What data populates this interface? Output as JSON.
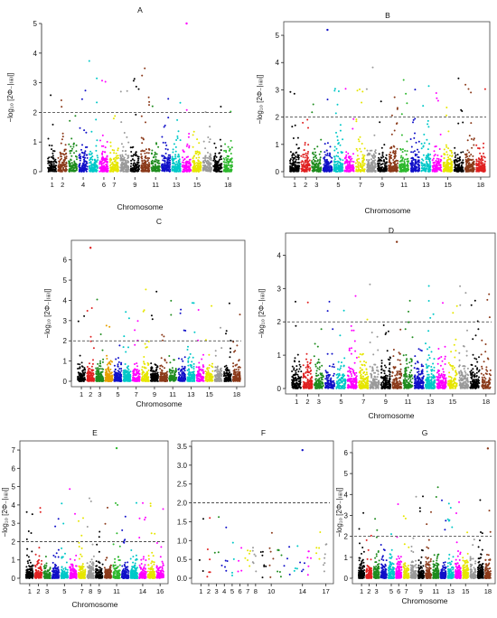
{
  "figure": {
    "panels": [
      {
        "id": "A",
        "title": "A",
        "xlabel": "Chromosome",
        "ylabel": "−log₁₀ [2Φ₋|₍ᵢᵢᵢ₎|]",
        "ylim": [
          0,
          5
        ],
        "yticks": [
          0,
          1,
          2,
          3,
          4,
          5
        ],
        "chromosomes": 18,
        "xtick_labels": [
          "1",
          "2",
          "4",
          "6",
          "7",
          "9",
          "11",
          "13",
          "15",
          "18"
        ],
        "xtick_chroms": [
          1,
          2,
          4,
          6,
          7,
          9,
          11,
          13,
          15,
          18
        ],
        "threshold": 2,
        "peak": 5.0,
        "palette": [
          "#000000",
          "#8b3a1a",
          "#1f8c1f",
          "#1010c8",
          "#00c8c8",
          "#ff00ff",
          "#e6e600",
          "#9a9a9a",
          "#000000",
          "#8b3a1a",
          "#1f8c1f",
          "#1010c8",
          "#00c8c8",
          "#ff00ff",
          "#e6e600",
          "#9a9a9a",
          "#000000",
          "#2db82d"
        ]
      },
      {
        "id": "B",
        "title": "B",
        "xlabel": "Chromosome",
        "ylabel": "−log₁₀ [2Φ₋|₍ᵢᵢᵢ₎|]",
        "ylim": [
          0,
          5.3
        ],
        "yticks": [
          0,
          1,
          2,
          3,
          4,
          5
        ],
        "chromosomes": 18,
        "xtick_labels": [
          "1",
          "2",
          "3",
          "5",
          "7",
          "9",
          "11",
          "13",
          "15",
          "18"
        ],
        "xtick_chroms": [
          1,
          2,
          3,
          5,
          7,
          9,
          11,
          13,
          15,
          18
        ],
        "threshold": 2,
        "peak": 5.2,
        "palette": [
          "#000000",
          "#e02020",
          "#1f8c1f",
          "#1010c8",
          "#00c8c8",
          "#ff00ff",
          "#e6e600",
          "#9a9a9a",
          "#000000",
          "#8b3a1a",
          "#2db82d",
          "#1010c8",
          "#00c8c8",
          "#ff00ff",
          "#e6e600",
          "#000000",
          "#8b3a1a",
          "#e02020"
        ]
      },
      {
        "id": "C",
        "title": "C",
        "xlabel": "Chromosome",
        "ylabel": "−log₁₀ [2Φ₋|₍ᵢᵢᵢ₎|]",
        "ylim": [
          0,
          6.7
        ],
        "yticks": [
          0,
          1,
          2,
          3,
          4,
          5,
          6
        ],
        "chromosomes": 18,
        "xtick_labels": [
          "1",
          "2",
          "3",
          "5",
          "7",
          "9",
          "11",
          "13",
          "15",
          "18"
        ],
        "xtick_chroms": [
          1,
          2,
          3,
          5,
          7,
          9,
          11,
          13,
          15,
          18
        ],
        "threshold": 2,
        "peak": 6.6,
        "palette": [
          "#000000",
          "#e02020",
          "#1f8c1f",
          "#e6a000",
          "#1010c8",
          "#00c8c8",
          "#ff00ff",
          "#e6e600",
          "#000000",
          "#8b3a1a",
          "#1f8c1f",
          "#1010c8",
          "#00c8c8",
          "#ff00ff",
          "#e6e600",
          "#9a9a9a",
          "#000000",
          "#8b3a1a"
        ]
      },
      {
        "id": "D",
        "title": "D",
        "xlabel": "Chromosome",
        "ylabel": "−log₁₀ [2Φ₋|₍ᵢᵢᵢ₎|]",
        "ylim": [
          0,
          4.5
        ],
        "yticks": [
          0,
          1,
          2,
          3,
          4
        ],
        "chromosomes": 18,
        "xtick_labels": [
          "1",
          "2",
          "3",
          "5",
          "7",
          "9",
          "11",
          "13",
          "15",
          "18"
        ],
        "xtick_chroms": [
          1,
          2,
          3,
          5,
          7,
          9,
          11,
          13,
          15,
          18
        ],
        "threshold": 2,
        "peak": 4.4,
        "palette": [
          "#000000",
          "#e02020",
          "#1f8c1f",
          "#1010c8",
          "#00c8c8",
          "#ff00ff",
          "#e6e600",
          "#9a9a9a",
          "#000000",
          "#8b3a1a",
          "#1f8c1f",
          "#1010c8",
          "#00c8c8",
          "#ff00ff",
          "#e6e600",
          "#9a9a9a",
          "#000000",
          "#8b3a1a"
        ]
      },
      {
        "id": "E",
        "title": "E",
        "xlabel": "Chromosome",
        "ylabel": "−log₁₀ [2Φ₋|₍ᵢᵢᵢ₎|]",
        "ylim": [
          0,
          7.2
        ],
        "yticks": [
          0,
          1,
          2,
          3,
          4,
          5,
          6,
          7
        ],
        "chromosomes": 16,
        "xtick_labels": [
          "1",
          "2",
          "3",
          "5",
          "7",
          "8",
          "9",
          "11",
          "14",
          "16"
        ],
        "xtick_chroms": [
          1,
          2,
          3,
          5,
          7,
          8,
          9,
          11,
          14,
          16
        ],
        "threshold": 2,
        "peak": 7.1,
        "palette": [
          "#000000",
          "#e02020",
          "#1f8c1f",
          "#1010c8",
          "#00c8c8",
          "#ff00ff",
          "#e6e600",
          "#9a9a9a",
          "#000000",
          "#8b3a1a",
          "#2db82d",
          "#1010c8",
          "#00c8c8",
          "#ff00ff",
          "#e6e600",
          "#ff00ff"
        ]
      },
      {
        "id": "F",
        "title": "F",
        "xlabel": "",
        "ylabel": "",
        "ylim": [
          0,
          3.5
        ],
        "yticks": [
          0,
          0.5,
          1,
          1.5,
          2,
          2.5,
          3,
          3.5
        ],
        "ytick_labels": [
          "0.0",
          "0.5",
          "1.0",
          "1.5",
          "2.0",
          "2.5",
          "3.0",
          "3.5"
        ],
        "chromosomes": 17,
        "xtick_labels": [
          "1",
          "2",
          "3",
          "4",
          "5",
          "6",
          "7",
          "8",
          "10",
          "14",
          "17"
        ],
        "xtick_chroms": [
          1,
          2,
          3,
          4,
          5,
          6,
          7,
          8,
          10,
          14,
          17
        ],
        "threshold": 2,
        "peak": 3.4,
        "sparse": true,
        "palette": [
          "#000000",
          "#e02020",
          "#1f8c1f",
          "#1010c8",
          "#00c8c8",
          "#ff00ff",
          "#e6e600",
          "#9a9a9a",
          "#000000",
          "#8b3a1a",
          "#1f8c1f",
          "#1010c8",
          "#00c8c8",
          "#1010c8",
          "#ff00ff",
          "#e6e600",
          "#9a9a9a"
        ]
      },
      {
        "id": "G",
        "title": "G",
        "xlabel": "Chromosome",
        "ylabel": "−log₁₀ [2Φ₋|₍ᵢᵢᵢ₎|]",
        "ylim": [
          0,
          6.3
        ],
        "yticks": [
          0,
          1,
          2,
          3,
          4,
          5,
          6
        ],
        "chromosomes": 18,
        "xtick_labels": [
          "1",
          "2",
          "3",
          "5",
          "6",
          "7",
          "9",
          "11",
          "13",
          "15",
          "18"
        ],
        "xtick_chroms": [
          1,
          2,
          3,
          5,
          6,
          7,
          9,
          11,
          13,
          15,
          18
        ],
        "threshold": 2,
        "peak": 6.2,
        "palette": [
          "#000000",
          "#e02020",
          "#1f8c1f",
          "#1010c8",
          "#00c8c8",
          "#ff00ff",
          "#e6e600",
          "#9a9a9a",
          "#000000",
          "#8b3a1a",
          "#1f8c1f",
          "#1010c8",
          "#00c8c8",
          "#ff00ff",
          "#e6e600",
          "#9a9a9a",
          "#000000",
          "#8b3a1a"
        ]
      }
    ]
  },
  "chart_data": [
    {
      "type": "scatter",
      "panel": "A",
      "title": "A",
      "xlabel": "Chromosome",
      "ylabel": "−log₁₀ [2Φ₋|₍ᵢᵢᵢ₎|]",
      "ylim": [
        0,
        5
      ],
      "threshold": 2,
      "max_value": 5.0
    },
    {
      "type": "scatter",
      "panel": "B",
      "title": "B",
      "xlabel": "Chromosome",
      "ylabel": "−log₁₀ [2Φ₋|₍ᵢᵢᵢ₎|]",
      "ylim": [
        0,
        5.3
      ],
      "threshold": 2,
      "max_value": 5.2
    },
    {
      "type": "scatter",
      "panel": "C",
      "title": "C",
      "xlabel": "Chromosome",
      "ylabel": "−log₁₀ [2Φ₋|₍ᵢᵢᵢ₎|]",
      "ylim": [
        0,
        6.7
      ],
      "threshold": 2,
      "max_value": 6.6
    },
    {
      "type": "scatter",
      "panel": "D",
      "title": "D",
      "xlabel": "Chromosome",
      "ylabel": "−log₁₀ [2Φ₋|₍ᵢᵢᵢ₎|]",
      "ylim": [
        0,
        4.5
      ],
      "threshold": 2,
      "max_value": 4.4
    },
    {
      "type": "scatter",
      "panel": "E",
      "title": "E",
      "xlabel": "Chromosome",
      "ylabel": "−log₁₀ [2Φ₋|₍ᵢᵢᵢ₎|]",
      "ylim": [
        0,
        7.2
      ],
      "threshold": 2,
      "max_value": 7.1
    },
    {
      "type": "scatter",
      "panel": "F",
      "title": "F",
      "xlabel": "",
      "ylabel": "",
      "ylim": [
        0,
        3.5
      ],
      "threshold": 2,
      "max_value": 3.4
    },
    {
      "type": "scatter",
      "panel": "G",
      "title": "G",
      "xlabel": "Chromosome",
      "ylabel": "−log₁₀ [2Φ₋|₍ᵢᵢᵢ₎|]",
      "ylim": [
        0,
        6.3
      ],
      "threshold": 2,
      "max_value": 6.2
    }
  ]
}
